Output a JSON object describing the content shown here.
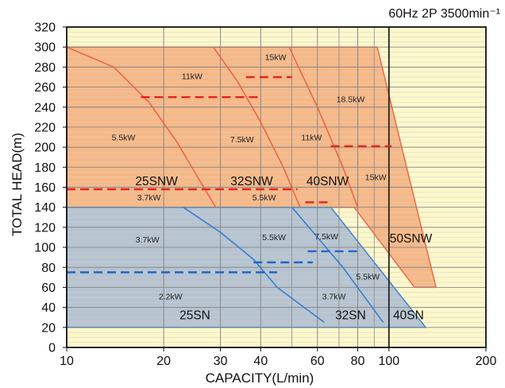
{
  "chart_data": {
    "type": "area",
    "title": "60Hz 2P 3500min⁻¹",
    "xlabel": "CAPACITY(L/min)",
    "ylabel": "TOTAL HEAD(m)",
    "x_scale": "log",
    "xlim": [
      10,
      200
    ],
    "ylim": [
      0,
      320
    ],
    "x_ticks": [
      10,
      20,
      30,
      40,
      60,
      80,
      100,
      200
    ],
    "x_tick_labels": [
      "10",
      "20",
      "30",
      "40",
      "60",
      "80",
      "100",
      "200"
    ],
    "x_minor_gridlines": [
      50,
      70,
      90
    ],
    "y_ticks": [
      0,
      20,
      40,
      60,
      80,
      100,
      120,
      140,
      160,
      180,
      200,
      220,
      240,
      260,
      280,
      300,
      320
    ],
    "y_tick_labels": [
      "0",
      "20",
      "40",
      "60",
      "80",
      "100",
      "120",
      "140",
      "160",
      "180",
      "200",
      "220",
      "240",
      "260",
      "280",
      "300",
      "320"
    ],
    "background_color": "#fdf8cc",
    "colors": {
      "snw_fill": "#f4b98a",
      "snw_line": "#ee6543",
      "snw_rating": "#e8221e",
      "sn_fill": "#b7c4d0",
      "sn_line": "#3a7fd2",
      "sn_rating": "#1e66c8",
      "major_grid": "#222222",
      "minor_grid": "#888888"
    },
    "regions": [
      {
        "label": "SNW range",
        "series": "SNW",
        "points": [
          [
            10,
            300
          ],
          [
            92,
            300
          ],
          [
            140,
            60
          ],
          [
            120,
            60
          ],
          [
            78,
            140
          ],
          [
            10,
            140
          ]
        ]
      },
      {
        "label": "SN range",
        "series": "SN",
        "points": [
          [
            10,
            140
          ],
          [
            66,
            140
          ],
          [
            130,
            20
          ],
          [
            10,
            20
          ]
        ]
      }
    ],
    "series": [
      {
        "kind": "boundary",
        "group": "SNW",
        "points": [
          [
            10,
            300
          ],
          [
            14,
            280
          ],
          [
            18,
            245
          ],
          [
            22,
            205
          ],
          [
            25.5,
            170
          ],
          [
            29,
            140
          ]
        ]
      },
      {
        "kind": "boundary",
        "group": "SNW",
        "points": [
          [
            28.5,
            300
          ],
          [
            34,
            265
          ],
          [
            40,
            225
          ],
          [
            47,
            180
          ],
          [
            53,
            140
          ]
        ]
      },
      {
        "kind": "boundary",
        "group": "SNW",
        "points": [
          [
            49,
            300
          ],
          [
            60,
            240
          ],
          [
            72,
            180
          ],
          [
            80,
            140
          ]
        ]
      },
      {
        "kind": "boundary",
        "group": "SN",
        "points": [
          [
            23,
            140
          ],
          [
            30,
            115
          ],
          [
            38,
            88
          ],
          [
            45,
            60
          ],
          [
            63,
            25
          ]
        ]
      },
      {
        "kind": "boundary",
        "group": "SN",
        "points": [
          [
            50,
            140
          ],
          [
            60,
            110
          ],
          [
            72,
            80
          ],
          [
            96,
            25
          ]
        ]
      },
      {
        "kind": "rating",
        "group": "SNW",
        "points": [
          [
            17,
            250
          ],
          [
            40,
            250
          ]
        ]
      },
      {
        "kind": "rating",
        "group": "SNW",
        "points": [
          [
            10,
            158
          ],
          [
            52,
            158
          ]
        ]
      },
      {
        "kind": "rating",
        "group": "SNW",
        "points": [
          [
            36,
            270
          ],
          [
            50,
            270
          ]
        ]
      },
      {
        "kind": "rating",
        "group": "SNW",
        "points": [
          [
            55,
            145
          ],
          [
            66,
            145
          ]
        ]
      },
      {
        "kind": "rating",
        "group": "SNW",
        "points": [
          [
            66,
            201
          ],
          [
            102,
            201
          ]
        ]
      },
      {
        "kind": "rating",
        "group": "SN",
        "points": [
          [
            10,
            75
          ],
          [
            45,
            75
          ]
        ]
      },
      {
        "kind": "rating",
        "group": "SN",
        "points": [
          [
            38,
            85
          ],
          [
            58,
            85
          ]
        ]
      },
      {
        "kind": "rating",
        "group": "SN",
        "points": [
          [
            56,
            96
          ],
          [
            82,
            96
          ]
        ]
      }
    ],
    "model_labels": [
      {
        "text": "25SNW",
        "x": 19,
        "y": 162
      },
      {
        "text": "32SNW",
        "x": 37.5,
        "y": 162
      },
      {
        "text": "40SNW",
        "x": 64.5,
        "y": 162
      },
      {
        "text": "50SNW",
        "x": 117,
        "y": 105
      },
      {
        "text": "25SN",
        "x": 25,
        "y": 28
      },
      {
        "text": "32SN",
        "x": 76,
        "y": 28
      },
      {
        "text": "40SN",
        "x": 115,
        "y": 28
      }
    ],
    "power_labels": [
      {
        "text": "5.5kW",
        "x": 15,
        "y": 207
      },
      {
        "text": "3.7kW",
        "x": 18,
        "y": 147
      },
      {
        "text": "11kW",
        "x": 24.5,
        "y": 268
      },
      {
        "text": "7.5kW",
        "x": 35,
        "y": 205
      },
      {
        "text": "5.5kW",
        "x": 41,
        "y": 147
      },
      {
        "text": "15kW",
        "x": 44.5,
        "y": 287
      },
      {
        "text": "11kW",
        "x": 57.5,
        "y": 207
      },
      {
        "text": "18.5kW",
        "x": 76,
        "y": 245
      },
      {
        "text": "15kW",
        "x": 91,
        "y": 167
      },
      {
        "text": "3.7kW",
        "x": 17.8,
        "y": 105
      },
      {
        "text": "2.2kW",
        "x": 21,
        "y": 48
      },
      {
        "text": "5.5kW",
        "x": 44,
        "y": 107
      },
      {
        "text": "7.5kW",
        "x": 64,
        "y": 108
      },
      {
        "text": "5.5kW",
        "x": 86,
        "y": 68
      },
      {
        "text": "3.7kW",
        "x": 67.5,
        "y": 48
      }
    ]
  }
}
